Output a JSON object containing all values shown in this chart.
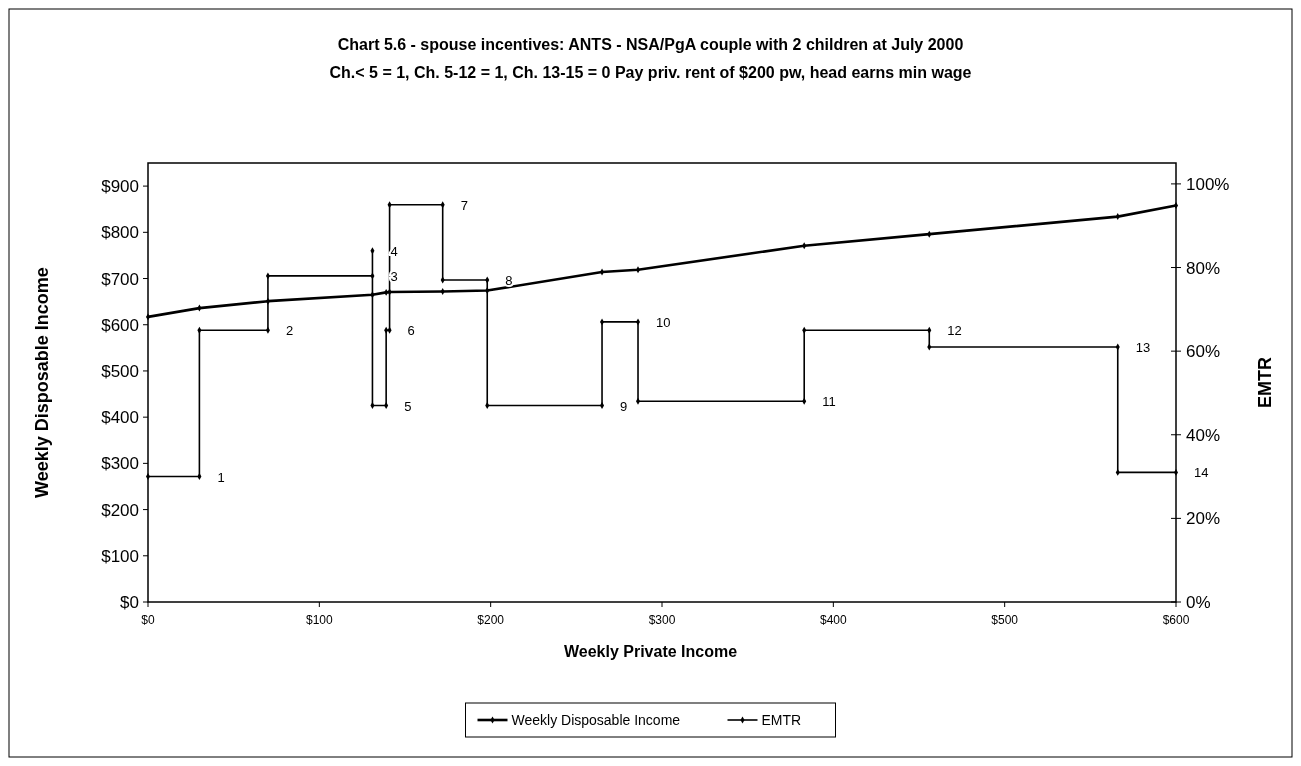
{
  "chart_data": {
    "type": "line",
    "title": "Chart 5.6 - spouse incentives: ANTS - NSA/PgA couple with 2 children at July 2000",
    "subtitle": "Ch.< 5 = 1, Ch. 5-12 = 1, Ch. 13-15 = 0     Pay priv. rent of $200 pw, head earns min wage",
    "xlabel": "Weekly Private Income",
    "ylabel": "Weekly Disposable Income",
    "y2label": "EMTR",
    "xlim": [
      0,
      600
    ],
    "xticks": [
      {
        "value": 0,
        "label": "$0"
      },
      {
        "value": 100,
        "label": "$100"
      },
      {
        "value": 200,
        "label": "$200"
      },
      {
        "value": 300,
        "label": "$300"
      },
      {
        "value": 400,
        "label": "$400"
      },
      {
        "value": 500,
        "label": "$500"
      },
      {
        "value": 600,
        "label": "$600"
      }
    ],
    "ylim": [
      0,
      950
    ],
    "yticks": [
      {
        "value": 0,
        "label": "$0"
      },
      {
        "value": 100,
        "label": "$100"
      },
      {
        "value": 200,
        "label": "$200"
      },
      {
        "value": 300,
        "label": "$300"
      },
      {
        "value": 400,
        "label": "$400"
      },
      {
        "value": 500,
        "label": "$500"
      },
      {
        "value": 600,
        "label": "$600"
      },
      {
        "value": 700,
        "label": "$700"
      },
      {
        "value": 800,
        "label": "$800"
      },
      {
        "value": 900,
        "label": "$900"
      }
    ],
    "y2lim": [
      0,
      105
    ],
    "y2ticks": [
      {
        "value": 0,
        "label": "0%"
      },
      {
        "value": 20,
        "label": "20%"
      },
      {
        "value": 40,
        "label": "40%"
      },
      {
        "value": 60,
        "label": "60%"
      },
      {
        "value": 80,
        "label": "80%"
      },
      {
        "value": 100,
        "label": "100%"
      }
    ],
    "grid": false,
    "legend": "bottom",
    "marker": "diamond",
    "line_style": "solid",
    "series": [
      {
        "name": "Weekly Disposable Income",
        "color": "#000000",
        "x": [
          0,
          30,
          70,
          131,
          139,
          141,
          172,
          198,
          265,
          286,
          383,
          456,
          566,
          600
        ],
        "values": [
          617,
          636,
          651,
          665,
          670,
          671,
          672,
          674,
          714,
          719,
          771,
          796,
          834,
          858
        ]
      },
      {
        "name": "EMTR",
        "color": "#000000",
        "axis": "y2",
        "x": [
          0,
          30,
          30,
          70,
          70,
          131,
          131,
          131,
          139,
          139,
          141,
          141,
          172,
          172,
          198,
          198,
          265,
          265,
          286,
          286,
          383,
          383,
          456,
          456,
          566,
          566,
          600
        ],
        "values": [
          30,
          30,
          65,
          65,
          78,
          78,
          84,
          47,
          47,
          65,
          65,
          95,
          95,
          77,
          77,
          47,
          47,
          67,
          67,
          48,
          48,
          65,
          65,
          61,
          61,
          31,
          31
        ]
      }
    ],
    "annotations": [
      {
        "text": "1",
        "x": 30,
        "y": 271
      },
      {
        "text": "2",
        "x": 70,
        "y": 588
      },
      {
        "text": "3",
        "x": 131,
        "y": 706
      },
      {
        "text": "4",
        "x": 131,
        "y": 760
      },
      {
        "text": "5",
        "x": 139,
        "y": 425
      },
      {
        "text": "6",
        "x": 141,
        "y": 588
      },
      {
        "text": "7",
        "x": 172,
        "y": 860
      },
      {
        "text": "8",
        "x": 198,
        "y": 697
      },
      {
        "text": "9",
        "x": 265,
        "y": 425
      },
      {
        "text": "10",
        "x": 286,
        "y": 606
      },
      {
        "text": "11",
        "x": 383,
        "y": 434
      },
      {
        "text": "12",
        "x": 456,
        "y": 588
      },
      {
        "text": "13",
        "x": 566,
        "y": 552
      },
      {
        "text": "14",
        "x": 600,
        "y": 281
      }
    ]
  }
}
